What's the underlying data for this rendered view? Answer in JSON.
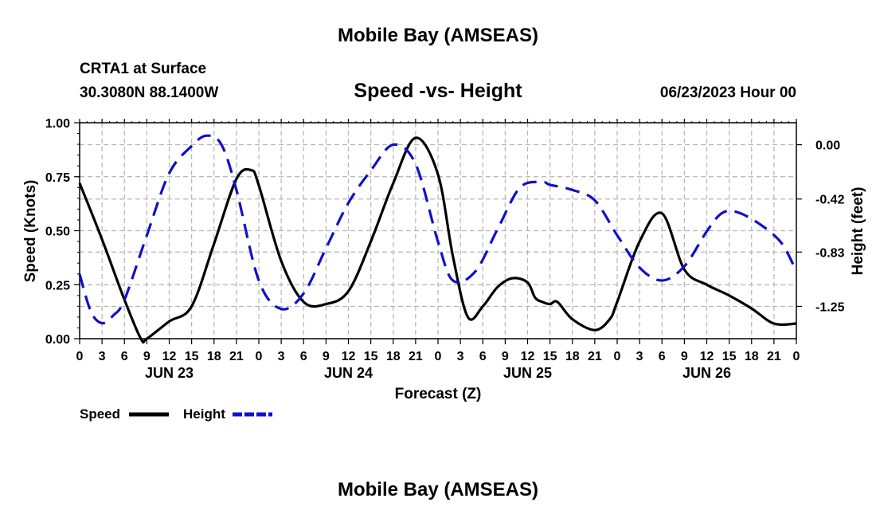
{
  "header": {
    "main_title": "Mobile Bay (AMSEAS)",
    "station": "CRTA1 at Surface",
    "coords": "30.3080N  88.1400W",
    "chart_title": "Speed -vs- Height",
    "datetime": "06/23/2023 Hour 00"
  },
  "footer": {
    "repeat_title": "Mobile Bay (AMSEAS)"
  },
  "colors": {
    "speed": "#000000",
    "height": "#1010c8",
    "grid": "#b4b4b4"
  },
  "chart_data": {
    "type": "line",
    "title": "Speed -vs- Height",
    "xlabel": "Forecast (Z)",
    "ylabel": "Speed (Knots)",
    "ylabel_right": "Height (feet)",
    "xlim_hours": [
      0,
      96
    ],
    "ylim": [
      0,
      1
    ],
    "ylim_right": [
      -1.5,
      0.17
    ],
    "x_tick_labels": [
      "0",
      "3",
      "6",
      "9",
      "12",
      "15",
      "18",
      "21",
      "0",
      "3",
      "6",
      "9",
      "12",
      "15",
      "18",
      "21",
      "0",
      "3",
      "6",
      "9",
      "12",
      "15",
      "18",
      "21",
      "0",
      "3",
      "6",
      "9",
      "12",
      "15",
      "18",
      "21",
      "0"
    ],
    "day_labels": [
      {
        "label": "JUN 23",
        "hour": 12
      },
      {
        "label": "JUN 24",
        "hour": 36
      },
      {
        "label": "JUN 25",
        "hour": 60
      },
      {
        "label": "JUN 26",
        "hour": 84
      }
    ],
    "y_ticks": [
      0,
      0.25,
      0.5,
      0.75,
      1.0
    ],
    "y_tick_labels": [
      "0.00",
      "0.25",
      "0.50",
      "0.75",
      "1.00"
    ],
    "y_right_ticks": [
      0.0,
      -0.42,
      -0.83,
      -1.25
    ],
    "y_right_tick_labels": [
      "0.00",
      "-0.42",
      "-0.83",
      "-1.25"
    ],
    "legend": [
      {
        "name": "Speed",
        "style": "solid"
      },
      {
        "name": "Height",
        "style": "dashed"
      }
    ],
    "series": [
      {
        "name": "Speed",
        "axis": "left",
        "style": "solid",
        "x": [
          0,
          3,
          6,
          8.2,
          9,
          12,
          15,
          18,
          21,
          23,
          24,
          27,
          30,
          33,
          36,
          39,
          42,
          45,
          48,
          50,
          52,
          54,
          56,
          58,
          60,
          61,
          62,
          63,
          64,
          66,
          69,
          71,
          72,
          75,
          78,
          81,
          84,
          87,
          90,
          93,
          96
        ],
        "values": [
          0.72,
          0.46,
          0.18,
          0.0,
          0.0,
          0.08,
          0.15,
          0.44,
          0.74,
          0.78,
          0.71,
          0.36,
          0.17,
          0.16,
          0.22,
          0.45,
          0.72,
          0.93,
          0.76,
          0.38,
          0.1,
          0.15,
          0.24,
          0.28,
          0.26,
          0.19,
          0.17,
          0.16,
          0.17,
          0.09,
          0.04,
          0.09,
          0.17,
          0.45,
          0.58,
          0.32,
          0.25,
          0.2,
          0.14,
          0.07,
          0.07
        ]
      },
      {
        "name": "Height",
        "axis": "right",
        "style": "dashed",
        "x": [
          0,
          1.5,
          3,
          4.5,
          6,
          9,
          12,
          15,
          17,
          19,
          21,
          24,
          27,
          30,
          33,
          36,
          39,
          42,
          45,
          48,
          50,
          53,
          56,
          59,
          62,
          63,
          66,
          69,
          72,
          75,
          78,
          81,
          84,
          86,
          88,
          91,
          94,
          96
        ],
        "values": [
          -1.0,
          -1.29,
          -1.38,
          -1.32,
          -1.2,
          -0.7,
          -0.22,
          -0.01,
          0.07,
          0.0,
          -0.35,
          -1.05,
          -1.27,
          -1.15,
          -0.8,
          -0.45,
          -0.2,
          0.0,
          -0.15,
          -0.75,
          -1.05,
          -0.98,
          -0.65,
          -0.33,
          -0.29,
          -0.31,
          -0.35,
          -0.43,
          -0.7,
          -0.95,
          -1.05,
          -0.94,
          -0.67,
          -0.53,
          -0.52,
          -0.61,
          -0.76,
          -0.98
        ]
      }
    ]
  }
}
